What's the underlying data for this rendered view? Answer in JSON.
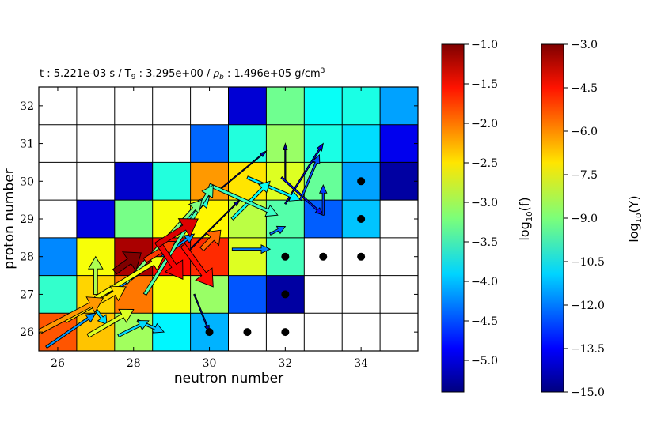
{
  "chart_data": {
    "type": "heatmap",
    "title_parts": {
      "t_label": "t",
      "t_value": "5.221e-03 s",
      "T_label": "T",
      "T_sub": "9",
      "T_value": "3.295e+00",
      "rho_label": "ρ",
      "rho_sub": "b",
      "rho_value": "1.496e+05 g/cm",
      "rho_unit_sup": "3",
      "separator": "/"
    },
    "xlabel": "neutron number",
    "ylabel": "proton number",
    "xlim": [
      25.5,
      35.5
    ],
    "ylim": [
      25.5,
      32.5
    ],
    "xticks": [
      "26",
      "28",
      "30",
      "32",
      "34"
    ],
    "yticks": [
      "26",
      "27",
      "28",
      "29",
      "30",
      "31",
      "32"
    ],
    "grid": true,
    "cells": [
      {
        "n": 25,
        "z": 26,
        "log10Y": -5.8
      },
      {
        "n": 26,
        "z": 26,
        "log10Y": -5.5
      },
      {
        "n": 27,
        "z": 26,
        "log10Y": -6.8
      },
      {
        "n": 28,
        "z": 26,
        "log10Y": -8.6
      },
      {
        "n": 29,
        "z": 26,
        "log10Y": -10.6
      },
      {
        "n": 30,
        "z": 26,
        "log10Y": -11.4
      },
      {
        "n": 31,
        "z": 26,
        "log10Y": null
      },
      {
        "n": 32,
        "z": 26,
        "log10Y": null
      },
      {
        "n": 33,
        "z": 26,
        "log10Y": null
      },
      {
        "n": 34,
        "z": 26,
        "log10Y": null
      },
      {
        "n": 35,
        "z": 26,
        "log10Y": null
      },
      {
        "n": 26,
        "z": 27,
        "log10Y": -9.9
      },
      {
        "n": 27,
        "z": 27,
        "log10Y": -7.0
      },
      {
        "n": 28,
        "z": 27,
        "log10Y": -5.9
      },
      {
        "n": 29,
        "z": 27,
        "log10Y": -7.6
      },
      {
        "n": 30,
        "z": 27,
        "log10Y": -8.7
      },
      {
        "n": 31,
        "z": 27,
        "log10Y": -12.5
      },
      {
        "n": 32,
        "z": 27,
        "log10Y": -14.6
      },
      {
        "n": 33,
        "z": 27,
        "log10Y": null
      },
      {
        "n": 34,
        "z": 27,
        "log10Y": null
      },
      {
        "n": 35,
        "z": 27,
        "log10Y": null
      },
      {
        "n": 26,
        "z": 28,
        "log10Y": -11.9
      },
      {
        "n": 27,
        "z": 28,
        "log10Y": -7.6
      },
      {
        "n": 28,
        "z": 28,
        "log10Y": -3.5
      },
      {
        "n": 29,
        "z": 28,
        "log10Y": -4.6
      },
      {
        "n": 30,
        "z": 28,
        "log10Y": -5.0
      },
      {
        "n": 31,
        "z": 28,
        "log10Y": -7.9
      },
      {
        "n": 32,
        "z": 28,
        "log10Y": -9.7
      },
      {
        "n": 33,
        "z": 28,
        "log10Y": null
      },
      {
        "n": 34,
        "z": 28,
        "log10Y": null
      },
      {
        "n": 35,
        "z": 28,
        "log10Y": null
      },
      {
        "n": 26,
        "z": 29,
        "log10Y": null
      },
      {
        "n": 27,
        "z": 29,
        "log10Y": -13.9
      },
      {
        "n": 28,
        "z": 29,
        "log10Y": -9.1
      },
      {
        "n": 29,
        "z": 29,
        "log10Y": -7.6
      },
      {
        "n": 30,
        "z": 29,
        "log10Y": -7.4
      },
      {
        "n": 31,
        "z": 29,
        "log10Y": -8.3
      },
      {
        "n": 32,
        "z": 29,
        "log10Y": -9.5
      },
      {
        "n": 33,
        "z": 29,
        "log10Y": -12.4
      },
      {
        "n": 34,
        "z": 29,
        "log10Y": -11.2
      },
      {
        "n": 35,
        "z": 29,
        "log10Y": null
      },
      {
        "n": 26,
        "z": 30,
        "log10Y": null
      },
      {
        "n": 27,
        "z": 30,
        "log10Y": null
      },
      {
        "n": 28,
        "z": 30,
        "log10Y": -14.1
      },
      {
        "n": 29,
        "z": 30,
        "log10Y": -10.1
      },
      {
        "n": 30,
        "z": 30,
        "log10Y": -6.3
      },
      {
        "n": 31,
        "z": 30,
        "log10Y": -7.2
      },
      {
        "n": 32,
        "z": 30,
        "log10Y": -7.9
      },
      {
        "n": 33,
        "z": 30,
        "log10Y": -9.3
      },
      {
        "n": 34,
        "z": 30,
        "log10Y": -11.6
      },
      {
        "n": 35,
        "z": 30,
        "log10Y": -14.6
      },
      {
        "n": 26,
        "z": 31,
        "log10Y": null
      },
      {
        "n": 27,
        "z": 31,
        "log10Y": null
      },
      {
        "n": 28,
        "z": 31,
        "log10Y": null
      },
      {
        "n": 29,
        "z": 31,
        "log10Y": null
      },
      {
        "n": 30,
        "z": 31,
        "log10Y": -12.3
      },
      {
        "n": 31,
        "z": 31,
        "log10Y": -10.1
      },
      {
        "n": 32,
        "z": 31,
        "log10Y": -8.7
      },
      {
        "n": 33,
        "z": 31,
        "log10Y": -10.2
      },
      {
        "n": 34,
        "z": 31,
        "log10Y": -10.9
      },
      {
        "n": 35,
        "z": 31,
        "log10Y": -13.7
      },
      {
        "n": 26,
        "z": 32,
        "log10Y": null
      },
      {
        "n": 27,
        "z": 32,
        "log10Y": null
      },
      {
        "n": 28,
        "z": 32,
        "log10Y": null
      },
      {
        "n": 29,
        "z": 32,
        "log10Y": null
      },
      {
        "n": 30,
        "z": 32,
        "log10Y": null
      },
      {
        "n": 31,
        "z": 32,
        "log10Y": -14.0
      },
      {
        "n": 32,
        "z": 32,
        "log10Y": -9.2
      },
      {
        "n": 33,
        "z": 32,
        "log10Y": -10.4
      },
      {
        "n": 34,
        "z": 32,
        "log10Y": -10.2
      },
      {
        "n": 35,
        "z": 32,
        "log10Y": -11.6
      }
    ],
    "stable_isotopes": [
      {
        "n": 30,
        "z": 26
      },
      {
        "n": 31,
        "z": 26
      },
      {
        "n": 32,
        "z": 26
      },
      {
        "n": 32,
        "z": 27
      },
      {
        "n": 32,
        "z": 28
      },
      {
        "n": 33,
        "z": 28
      },
      {
        "n": 34,
        "z": 28
      },
      {
        "n": 34,
        "z": 29
      },
      {
        "n": 34,
        "z": 30
      }
    ],
    "flows": [
      {
        "from": [
          27.5,
          27.6
        ],
        "to": [
          28.2,
          28.1
        ],
        "log10f": -1.0
      },
      {
        "from": [
          28.6,
          28.3
        ],
        "to": [
          29.7,
          29.0
        ],
        "log10f": -1.4
      },
      {
        "from": [
          28.7,
          28.3
        ],
        "to": [
          29.3,
          27.4
        ],
        "log10f": -1.5
      },
      {
        "from": [
          29.3,
          28.3
        ],
        "to": [
          30.1,
          27.2
        ],
        "log10f": -1.6
      },
      {
        "from": [
          28.3,
          27.9
        ],
        "to": [
          29.1,
          28.4
        ],
        "log10f": -1.8
      },
      {
        "from": [
          29.8,
          28.2
        ],
        "to": [
          30.3,
          28.7
        ],
        "log10f": -2.0
      },
      {
        "from": [
          25.5,
          26.0
        ],
        "to": [
          27.2,
          26.9
        ],
        "log10f": -2.2
      },
      {
        "from": [
          26.2,
          26.3
        ],
        "to": [
          27.8,
          27.2
        ],
        "log10f": -2.5
      },
      {
        "from": [
          27.0,
          26.9
        ],
        "to": [
          28.8,
          28.0
        ],
        "log10f": -2.7
      },
      {
        "from": [
          26.8,
          25.9
        ],
        "to": [
          28.0,
          26.6
        ],
        "log10f": -2.8
      },
      {
        "from": [
          27.0,
          27.0
        ],
        "to": [
          27.0,
          28.0
        ],
        "log10f": -3.0
      },
      {
        "from": [
          27.8,
          27.3
        ],
        "to": [
          29.8,
          29.5
        ],
        "log10f": -3.2
      },
      {
        "from": [
          28.3,
          27.0
        ],
        "to": [
          30.1,
          29.9
        ],
        "log10f": -3.4
      },
      {
        "from": [
          30.0,
          29.9
        ],
        "to": [
          31.8,
          29.1
        ],
        "log10f": -3.5
      },
      {
        "from": [
          29.1,
          28.6
        ],
        "to": [
          30.0,
          29.6
        ],
        "log10f": -3.6
      },
      {
        "from": [
          30.6,
          29.0
        ],
        "to": [
          31.6,
          30.0
        ],
        "log10f": -3.7
      },
      {
        "from": [
          31.0,
          30.1
        ],
        "to": [
          32.4,
          29.5
        ],
        "log10f": -3.8
      },
      {
        "from": [
          27.0,
          26.6
        ],
        "to": [
          27.3,
          26.2
        ],
        "log10f": -3.9
      },
      {
        "from": [
          27.6,
          25.9
        ],
        "to": [
          28.4,
          26.3
        ],
        "log10f": -3.9
      },
      {
        "from": [
          28.1,
          26.3
        ],
        "to": [
          28.8,
          26.0
        ],
        "log10f": -4.0
      },
      {
        "from": [
          25.7,
          25.6
        ],
        "to": [
          27.0,
          26.5
        ],
        "log10f": -4.2
      },
      {
        "from": [
          26.8,
          26.6
        ],
        "to": [
          29.6,
          28.6
        ],
        "log10f": -4.2
      },
      {
        "from": [
          30.6,
          28.2
        ],
        "to": [
          31.6,
          28.2
        ],
        "log10f": -4.3
      },
      {
        "from": [
          31.6,
          28.6
        ],
        "to": [
          32.0,
          28.8
        ],
        "log10f": -4.4
      },
      {
        "from": [
          32.4,
          29.5
        ],
        "to": [
          32.9,
          30.7
        ],
        "log10f": -4.5
      },
      {
        "from": [
          33.0,
          29.1
        ],
        "to": [
          33.0,
          29.9
        ],
        "log10f": -4.6
      },
      {
        "from": [
          31.9,
          30.1
        ],
        "to": [
          33.0,
          29.1
        ],
        "log10f": -4.8
      },
      {
        "from": [
          32.0,
          29.4
        ],
        "to": [
          33.0,
          31.0
        ],
        "log10f": -5.0
      },
      {
        "from": [
          29.6,
          27.0
        ],
        "to": [
          30.0,
          26.0
        ],
        "log10f": -5.2
      },
      {
        "from": [
          32.0,
          30.0
        ],
        "to": [
          32.0,
          31.0
        ],
        "log10f": -5.3
      },
      {
        "from": [
          30.3,
          29.8
        ],
        "to": [
          31.5,
          30.8
        ],
        "log10f": -5.3
      },
      {
        "from": [
          29.5,
          28.2
        ],
        "to": [
          30.8,
          29.5
        ],
        "log10f": -5.3
      }
    ],
    "colorbar_f": {
      "label_base": "log",
      "label_sub": "10",
      "label_arg": "(f)",
      "range": [
        -5.4,
        -1.0
      ],
      "ticks": [
        "−1.0",
        "−1.5",
        "−2.0",
        "−2.5",
        "−3.0",
        "−3.5",
        "−4.0",
        "−4.5",
        "−5.0"
      ],
      "tick_values": [
        -1.0,
        -1.5,
        -2.0,
        -2.5,
        -3.0,
        -3.5,
        -4.0,
        -4.5,
        -5.0
      ]
    },
    "colorbar_Y": {
      "label_base": "log",
      "label_sub": "10",
      "label_arg": "(Y)",
      "range": [
        -15.0,
        -3.0
      ],
      "ticks": [
        "−3.0",
        "−4.5",
        "−6.0",
        "−7.5",
        "−9.0",
        "−10.5",
        "−12.0",
        "−13.5",
        "−15.0"
      ],
      "tick_values": [
        -3.0,
        -4.5,
        -6.0,
        -7.5,
        -9.0,
        -10.5,
        -12.0,
        -13.5,
        -15.0
      ]
    }
  }
}
